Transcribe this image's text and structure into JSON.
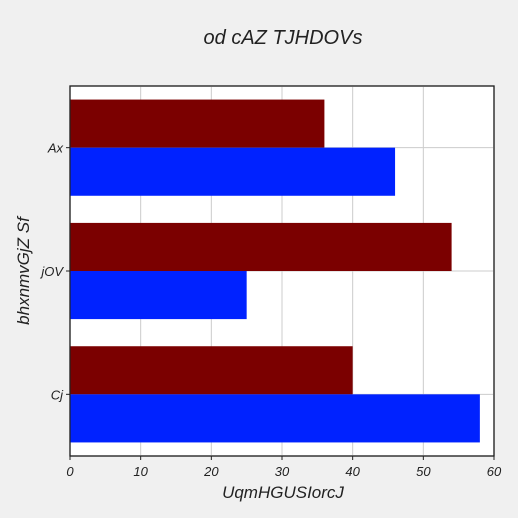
{
  "chart_data": {
    "type": "bar",
    "orientation": "horizontal",
    "title": "od cAZ TJHDOVs",
    "xlabel": "UqmHGUSIorcJ",
    "ylabel": "bhxnmvGjZ Sf",
    "categories": [
      "Ax",
      "jOV",
      "Cj"
    ],
    "series": [
      {
        "color": "#7b0000",
        "values": [
          36,
          54,
          40
        ]
      },
      {
        "color": "#0022ff",
        "values": [
          46,
          25,
          58
        ]
      }
    ],
    "xlim": [
      0,
      60
    ],
    "xticks": [
      0,
      10,
      20,
      30,
      40,
      50,
      60
    ],
    "grid": true,
    "legend": "none"
  },
  "colors": {
    "background": "#f0f0f0",
    "plot_background": "#ffffff",
    "grid": "#cccccc",
    "text": "#222222"
  }
}
